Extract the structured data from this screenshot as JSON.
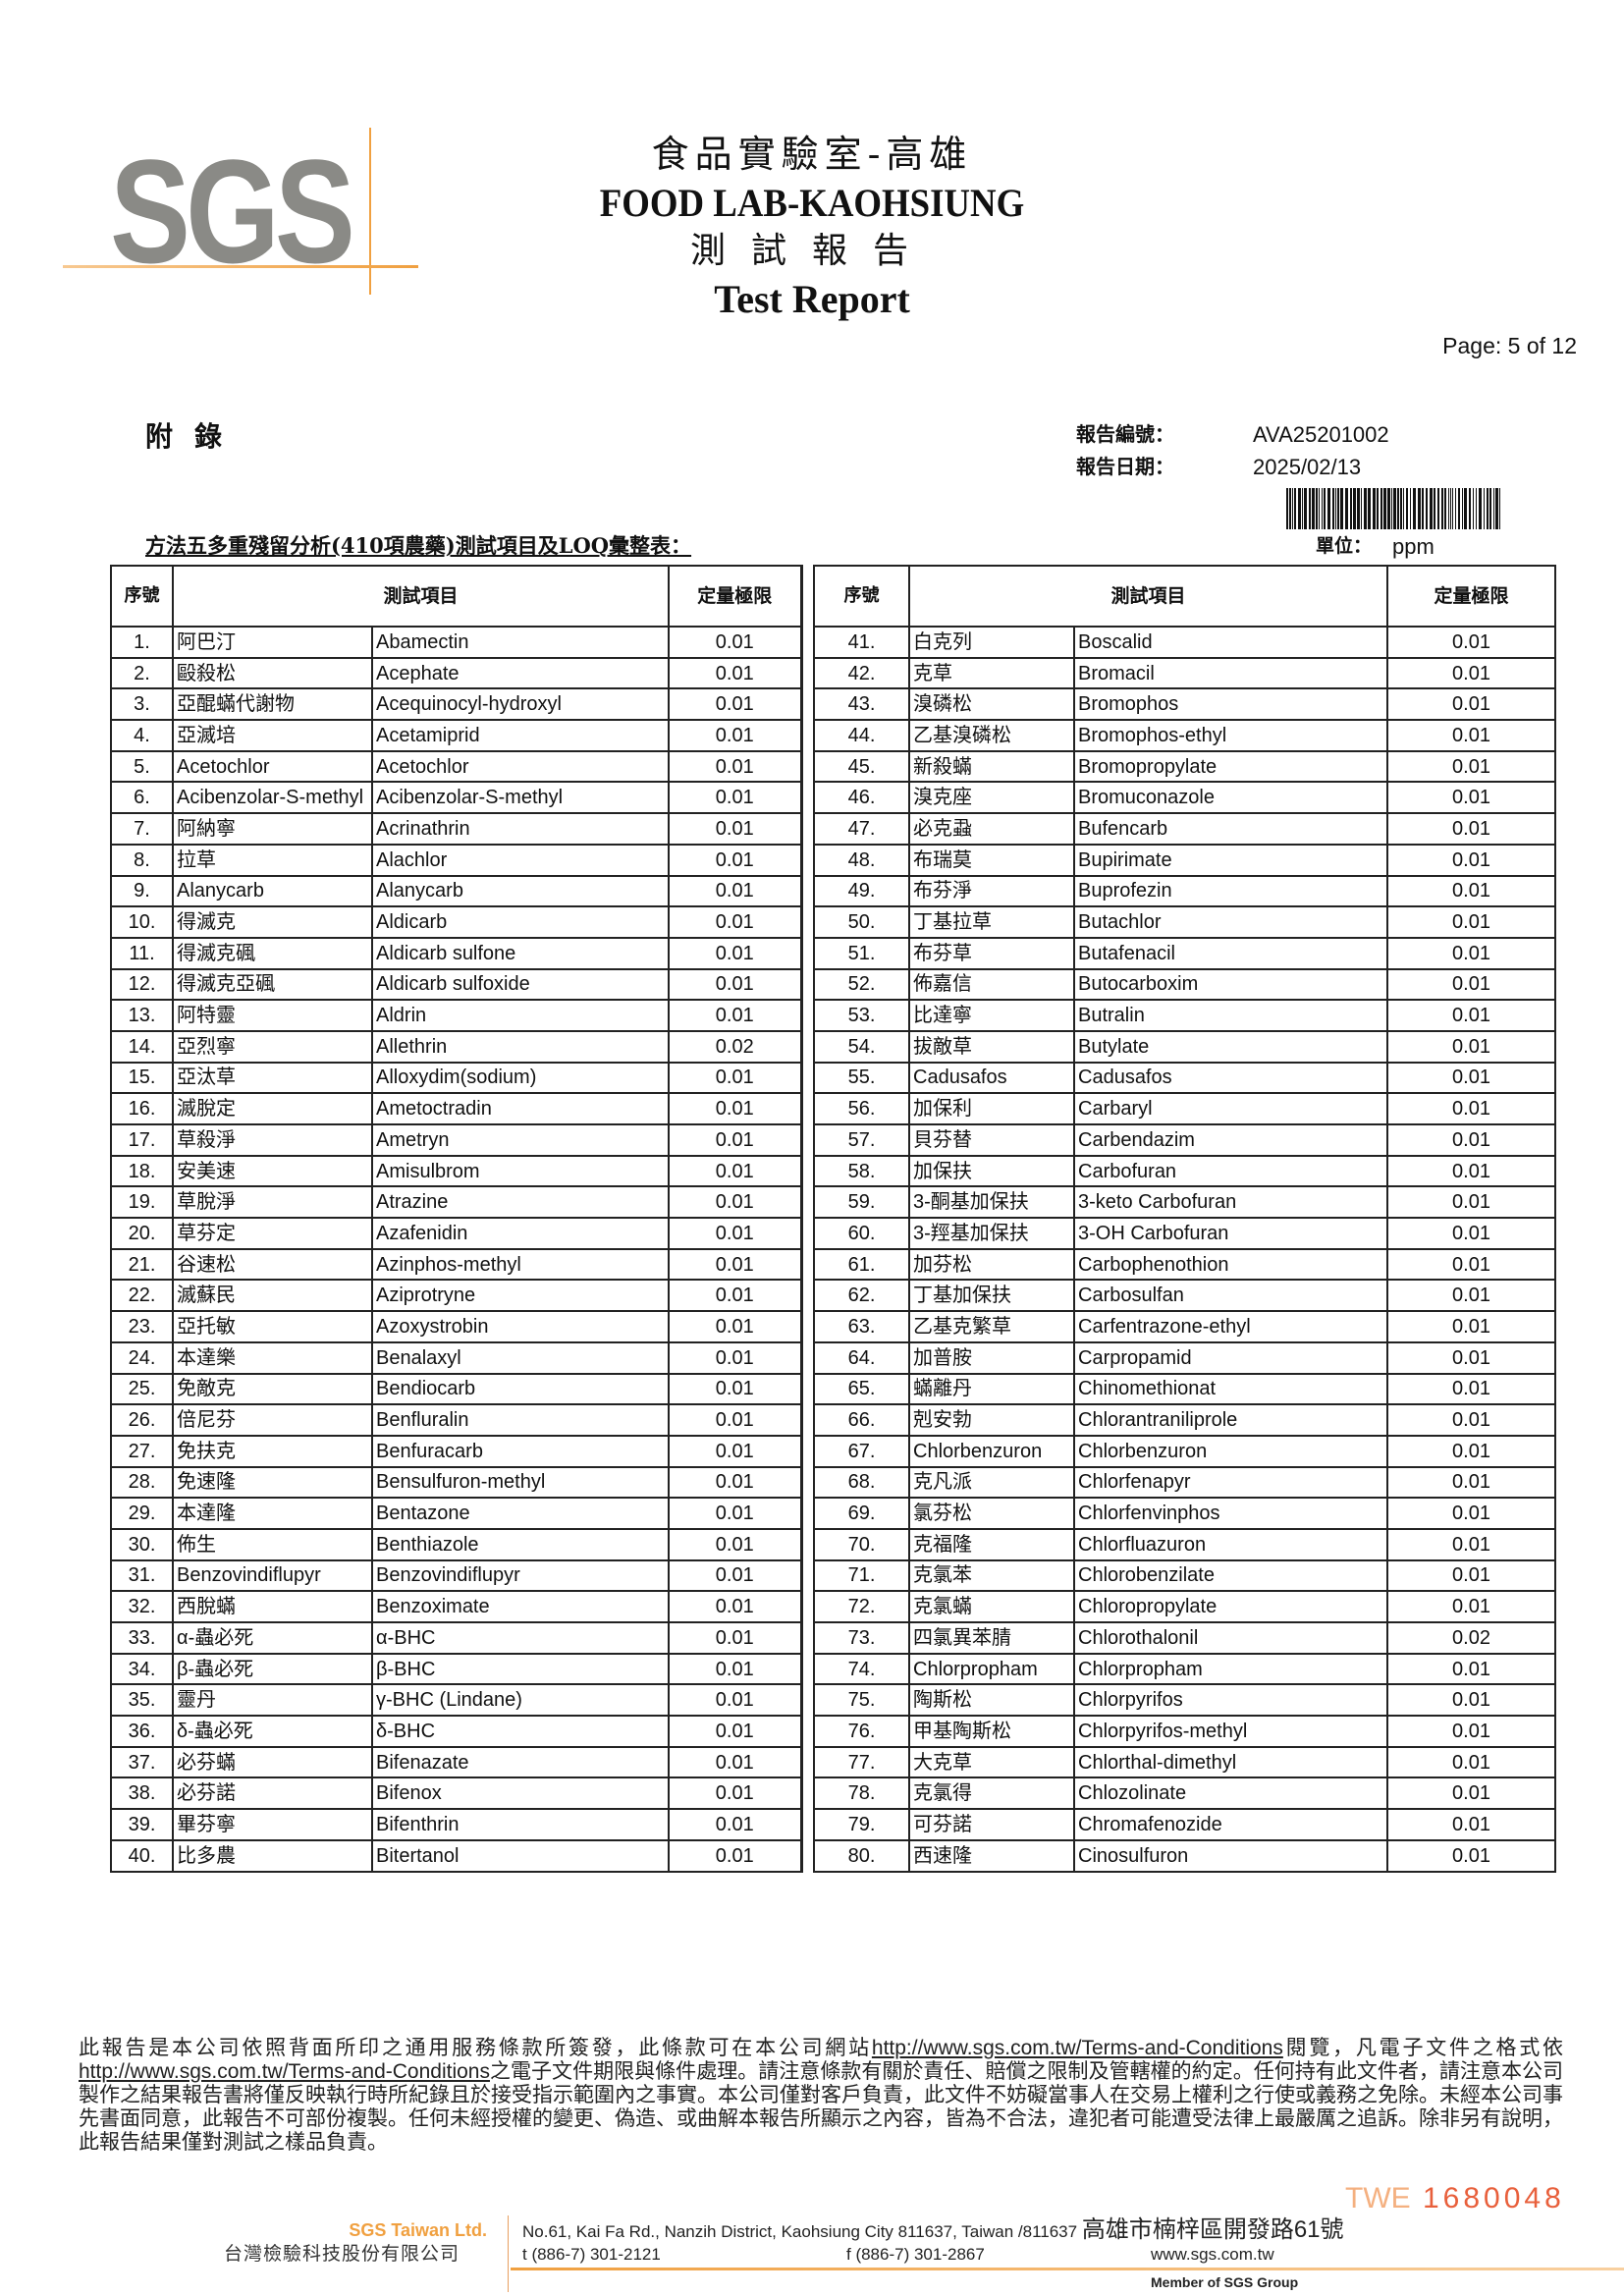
{
  "header": {
    "logo_text": "SGS",
    "title_cn": "食品實驗室-高雄",
    "title_en": "FOOD LAB-KAOHSIUNG",
    "subtitle_cn": "測試報告",
    "subtitle_en": "Test Report",
    "page": "Page: 5 of 12"
  },
  "meta": {
    "appendix": "附錄",
    "report_no_label": "報告編號：",
    "report_no": "AVA25201002",
    "report_date_label": "報告日期：",
    "report_date": "2025/02/13",
    "table_title": "方法五多重殘留分析(410項農藥)測試項目及LOQ彙整表：",
    "unit_label": "單位：",
    "unit": "ppm"
  },
  "table": {
    "headers": {
      "no": "序號",
      "item": "測試項目",
      "loq": "定量極限"
    },
    "rows": [
      [
        "1.",
        "阿巴汀",
        "Abamectin",
        "0.01"
      ],
      [
        "2.",
        "毆殺松",
        "Acephate",
        "0.01"
      ],
      [
        "3.",
        "亞醌蟎代謝物",
        "Acequinocyl-hydroxyl",
        "0.01"
      ],
      [
        "4.",
        "亞滅培",
        "Acetamiprid",
        "0.01"
      ],
      [
        "5.",
        "Acetochlor",
        "Acetochlor",
        "0.01"
      ],
      [
        "6.",
        "Acibenzolar-S-methyl",
        "Acibenzolar-S-methyl",
        "0.01"
      ],
      [
        "7.",
        "阿納寧",
        "Acrinathrin",
        "0.01"
      ],
      [
        "8.",
        "拉草",
        "Alachlor",
        "0.01"
      ],
      [
        "9.",
        "Alanycarb",
        "Alanycarb",
        "0.01"
      ],
      [
        "10.",
        "得滅克",
        "Aldicarb",
        "0.01"
      ],
      [
        "11.",
        "得滅克碸",
        "Aldicarb sulfone",
        "0.01"
      ],
      [
        "12.",
        "得滅克亞碸",
        "Aldicarb sulfoxide",
        "0.01"
      ],
      [
        "13.",
        "阿特靈",
        "Aldrin",
        "0.01"
      ],
      [
        "14.",
        "亞烈寧",
        "Allethrin",
        "0.02"
      ],
      [
        "15.",
        "亞汰草",
        "Alloxydim(sodium)",
        "0.01"
      ],
      [
        "16.",
        "滅脫定",
        "Ametoctradin",
        "0.01"
      ],
      [
        "17.",
        "草殺淨",
        "Ametryn",
        "0.01"
      ],
      [
        "18.",
        "安美速",
        "Amisulbrom",
        "0.01"
      ],
      [
        "19.",
        "草脫淨",
        "Atrazine",
        "0.01"
      ],
      [
        "20.",
        "草芬定",
        "Azafenidin",
        "0.01"
      ],
      [
        "21.",
        "谷速松",
        "Azinphos-methyl",
        "0.01"
      ],
      [
        "22.",
        "滅蘇民",
        "Aziprotryne",
        "0.01"
      ],
      [
        "23.",
        "亞托敏",
        "Azoxystrobin",
        "0.01"
      ],
      [
        "24.",
        "本達樂",
        "Benalaxyl",
        "0.01"
      ],
      [
        "25.",
        "免敵克",
        "Bendiocarb",
        "0.01"
      ],
      [
        "26.",
        "倍尼芬",
        "Benfluralin",
        "0.01"
      ],
      [
        "27.",
        "免扶克",
        "Benfuracarb",
        "0.01"
      ],
      [
        "28.",
        "免速隆",
        "Bensulfuron-methyl",
        "0.01"
      ],
      [
        "29.",
        "本達隆",
        "Bentazone",
        "0.01"
      ],
      [
        "30.",
        "佈生",
        "Benthiazole",
        "0.01"
      ],
      [
        "31.",
        "Benzovindiflupyr",
        "Benzovindiflupyr",
        "0.01"
      ],
      [
        "32.",
        "西脫蟎",
        "Benzoximate",
        "0.01"
      ],
      [
        "33.",
        "α-蟲必死",
        "α-BHC",
        "0.01"
      ],
      [
        "34.",
        "β-蟲必死",
        "β-BHC",
        "0.01"
      ],
      [
        "35.",
        "靈丹",
        "γ-BHC (Lindane)",
        "0.01"
      ],
      [
        "36.",
        "δ-蟲必死",
        "δ-BHC",
        "0.01"
      ],
      [
        "37.",
        "必芬蟎",
        "Bifenazate",
        "0.01"
      ],
      [
        "38.",
        "必芬諾",
        "Bifenox",
        "0.01"
      ],
      [
        "39.",
        "畢芬寧",
        "Bifenthrin",
        "0.01"
      ],
      [
        "40.",
        "比多農",
        "Bitertanol",
        "0.01"
      ],
      [
        "41.",
        "白克列",
        "Boscalid",
        "0.01"
      ],
      [
        "42.",
        "克草",
        "Bromacil",
        "0.01"
      ],
      [
        "43.",
        "溴磷松",
        "Bromophos",
        "0.01"
      ],
      [
        "44.",
        "乙基溴磷松",
        "Bromophos-ethyl",
        "0.01"
      ],
      [
        "45.",
        "新殺蟎",
        "Bromopropylate",
        "0.01"
      ],
      [
        "46.",
        "溴克座",
        "Bromuconazole",
        "0.01"
      ],
      [
        "47.",
        "必克蝨",
        "Bufencarb",
        "0.01"
      ],
      [
        "48.",
        "布瑞莫",
        "Bupirimate",
        "0.01"
      ],
      [
        "49.",
        "布芬淨",
        "Buprofezin",
        "0.01"
      ],
      [
        "50.",
        "丁基拉草",
        "Butachlor",
        "0.01"
      ],
      [
        "51.",
        "布芬草",
        "Butafenacil",
        "0.01"
      ],
      [
        "52.",
        "佈嘉信",
        "Butocarboxim",
        "0.01"
      ],
      [
        "53.",
        "比達寧",
        "Butralin",
        "0.01"
      ],
      [
        "54.",
        "拔敵草",
        "Butylate",
        "0.01"
      ],
      [
        "55.",
        "Cadusafos",
        "Cadusafos",
        "0.01"
      ],
      [
        "56.",
        "加保利",
        "Carbaryl",
        "0.01"
      ],
      [
        "57.",
        "貝芬替",
        "Carbendazim",
        "0.01"
      ],
      [
        "58.",
        "加保扶",
        "Carbofuran",
        "0.01"
      ],
      [
        "59.",
        "3-酮基加保扶",
        "3-keto Carbofuran",
        "0.01"
      ],
      [
        "60.",
        "3-羥基加保扶",
        "3-OH Carbofuran",
        "0.01"
      ],
      [
        "61.",
        "加芬松",
        "Carbophenothion",
        "0.01"
      ],
      [
        "62.",
        "丁基加保扶",
        "Carbosulfan",
        "0.01"
      ],
      [
        "63.",
        "乙基克繁草",
        "Carfentrazone-ethyl",
        "0.01"
      ],
      [
        "64.",
        "加普胺",
        "Carpropamid",
        "0.01"
      ],
      [
        "65.",
        "蟎離丹",
        "Chinomethionat",
        "0.01"
      ],
      [
        "66.",
        "剋安勃",
        "Chlorantraniliprole",
        "0.01"
      ],
      [
        "67.",
        "Chlorbenzuron",
        "Chlorbenzuron",
        "0.01"
      ],
      [
        "68.",
        "克凡派",
        "Chlorfenapyr",
        "0.01"
      ],
      [
        "69.",
        "氯芬松",
        "Chlorfenvinphos",
        "0.01"
      ],
      [
        "70.",
        "克福隆",
        "Chlorfluazuron",
        "0.01"
      ],
      [
        "71.",
        "克氯苯",
        "Chlorobenzilate",
        "0.01"
      ],
      [
        "72.",
        "克氯蟎",
        "Chloropropylate",
        "0.01"
      ],
      [
        "73.",
        "四氯異苯腈",
        "Chlorothalonil",
        "0.02"
      ],
      [
        "74.",
        "Chlorpropham",
        "Chlorpropham",
        "0.01"
      ],
      [
        "75.",
        "陶斯松",
        "Chlorpyrifos",
        "0.01"
      ],
      [
        "76.",
        "甲基陶斯松",
        "Chlorpyrifos-methyl",
        "0.01"
      ],
      [
        "77.",
        "大克草",
        "Chlorthal-dimethyl",
        "0.01"
      ],
      [
        "78.",
        "克氯得",
        "Chlozolinate",
        "0.01"
      ],
      [
        "79.",
        "可芬諾",
        "Chromafenozide",
        "0.01"
      ],
      [
        "80.",
        "西速隆",
        "Cinosulfuron",
        "0.01"
      ]
    ]
  },
  "disclaimer": {
    "p1": "此報告是本公司依照背面所印之通用服務條款所簽發，此條款可在本公司網站",
    "link1": "http://www.sgs.com.tw/Terms-and-Conditions",
    "p2": "閱覽，凡電子文件之格式依",
    "link2": "http://www.sgs.com.tw/Terms-and-Conditions",
    "p3": "之電子文件期限與條件處理。請注意條款有關於責任、賠償之限制及管轄權的約定。任何持有此文件者，請注意本公司製作之結果報告書將僅反映執行時所紀錄且於接受指示範圍內之事實。本公司僅對客戶負責，此文件不妨礙當事人在交易上權利之行使或義務之免除。未經本公司事先書面同意，此報告不可部份複製。任何未經授權的變更、偽造、或曲解本報告所顯示之內容，皆為不合法，違犯者可能遭受法律上最嚴厲之追訴。除非另有說明，此報告結果僅對測試之樣品負責。"
  },
  "serial": {
    "prefix": "TWE",
    "number": "1680048",
    "color": "#e8603c"
  },
  "footer": {
    "company_en": "SGS Taiwan Ltd.",
    "company_cn": "台灣檢驗科技股份有限公司",
    "address_en": "No.61, Kai Fa Rd., Nanzih District, Kaohsiung City 811637, Taiwan /811637 ",
    "address_cn": "高雄市楠梓區開發路61號",
    "tel": "t (886-7) 301-2121",
    "fax": "f (886-7) 301-2867",
    "web": "www.sgs.com.tw",
    "member": "Member of SGS Group",
    "accent_color": "#f0a040"
  }
}
